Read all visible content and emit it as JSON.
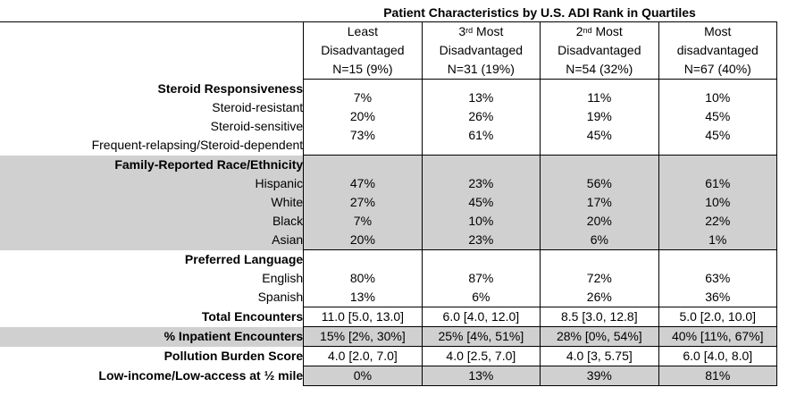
{
  "title": "Patient Characteristics by U.S. ADI Rank in Quartiles",
  "columns": [
    {
      "line1": "Least",
      "line1_sup": "",
      "line1_rest": "",
      "line2": "Disadvantaged",
      "line3": "N=15 (9%)"
    },
    {
      "line1": "3",
      "line1_sup": "rd",
      "line1_rest": " Most",
      "line2": "Disadvantaged",
      "line3": "N=31 (19%)"
    },
    {
      "line1": "2",
      "line1_sup": "nd",
      "line1_rest": " Most",
      "line2": "Disadvantaged",
      "line3": "N=54 (32%)"
    },
    {
      "line1": "Most",
      "line1_sup": "",
      "line1_rest": "",
      "line2": "disadvantaged",
      "line3": "N=67 (40%)"
    }
  ],
  "steroid": {
    "heading": "Steroid Responsiveness",
    "rows": [
      "Steroid-resistant",
      "Steroid-sensitive",
      "Frequent-relapsing/Steroid-dependent"
    ],
    "values": [
      [
        "7%",
        "20%",
        "73%"
      ],
      [
        "13%",
        "26%",
        "61%"
      ],
      [
        "11%",
        "19%",
        "45%"
      ],
      [
        "10%",
        "45%",
        "45%"
      ]
    ]
  },
  "race": {
    "heading": "Family-Reported Race/Ethnicity",
    "rows": [
      "Hispanic",
      "White",
      "Black",
      "Asian"
    ],
    "values": [
      [
        "47%",
        "27%",
        "7%",
        "20%"
      ],
      [
        "23%",
        "45%",
        "10%",
        "23%"
      ],
      [
        "56%",
        "17%",
        "20%",
        "6%"
      ],
      [
        "61%",
        "10%",
        "22%",
        "1%"
      ]
    ]
  },
  "language": {
    "heading": "Preferred Language",
    "rows": [
      "English",
      "Spanish"
    ],
    "values": [
      [
        "80%",
        "13%"
      ],
      [
        "87%",
        "6%"
      ],
      [
        "72%",
        "26%"
      ],
      [
        "63%",
        "36%"
      ]
    ]
  },
  "single_rows": [
    {
      "label": "Total Encounters",
      "values": [
        "11.0 [5.0, 13.0]",
        "6.0 [4.0, 12.0]",
        "8.5 [3.0, 12.8]",
        "5.0 [2.0, 10.0]"
      ]
    },
    {
      "label": "% Inpatient Encounters",
      "values": [
        "15% [2%, 30%]",
        "25% [4%, 51%]",
        "28% [0%, 54%]",
        "40% [11%, 67%]"
      ]
    },
    {
      "label": "Pollution Burden Score",
      "values": [
        "4.0 [2.0, 7.0]",
        "4.0 [2.5, 7.0]",
        "4.0 [3, 5.75]",
        "6.0 [4.0, 8.0]"
      ]
    },
    {
      "label": "Low-income/Low-access at ½ mile",
      "values": [
        "0%",
        "13%",
        "39%",
        "81%"
      ]
    }
  ],
  "colors": {
    "shade": "#d0d0d0",
    "border": "#000000"
  }
}
